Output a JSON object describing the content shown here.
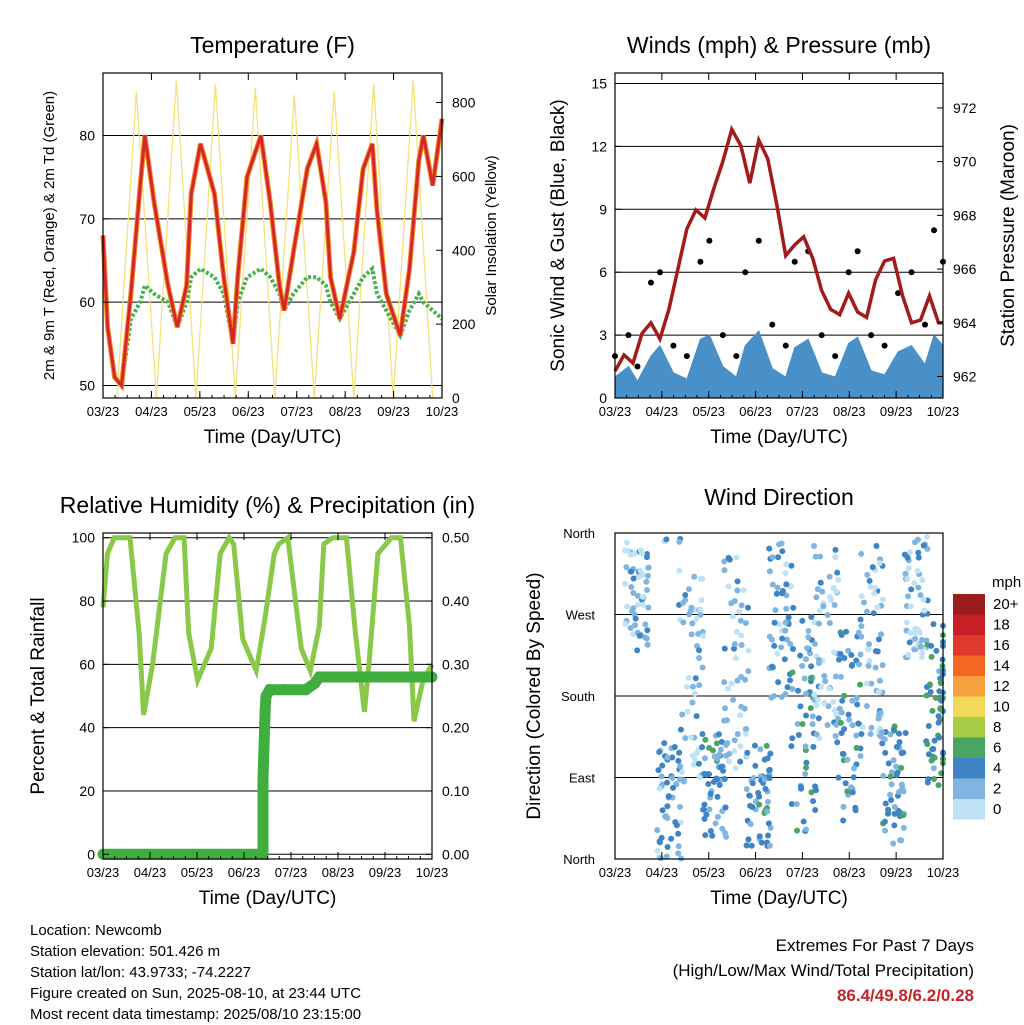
{
  "panels": {
    "temperature": {
      "title": "Temperature (F)",
      "ylabel": "2m & 9m T (Red, Orange) & 2m Td (Green)",
      "y2label": "Solar Insolation (Yellow)",
      "xlabel": "Time (Day/UTC)"
    },
    "winds": {
      "title": "Winds (mph) & Pressure (mb)",
      "ylabel": "Sonic Wind & Gust (Blue, Black)",
      "y2label": "Station Pressure (Maroon)",
      "xlabel": "Time (Day/UTC)"
    },
    "humidity": {
      "title": "Relative Humidity (%) & Precipitation (in)",
      "ylabel": "Percent & Total Rainfall",
      "xlabel": "Time (Day/UTC)"
    },
    "direction": {
      "title": "Wind Direction",
      "ylabel": "Direction (Colored By Speed)",
      "xlabel": "Time (Day/UTC)",
      "legend_title": "mph"
    }
  },
  "info": {
    "location": "Location: Newcomb",
    "elevation": "Station elevation: 501.426 m",
    "latlon": "Station lat/lon: 43.9733; -74.2227",
    "created": "Figure created on Sun, 2025-08-10, at 23:44 UTC",
    "recent": "Most recent data timestamp: 2025/08/10 23:15:00"
  },
  "extremes": {
    "heading": "Extremes For Past 7 Days",
    "subheading": "(High/Low/Max Wind/Total Precipitation)",
    "values": "86.4/49.8/6.2/0.28"
  },
  "colors": {
    "temp_2m": "#d62728",
    "temp_9m": "#f28c28",
    "dewpoint": "#4caf50",
    "solar": "#f5e17a",
    "wind": "#4a90c8",
    "gust": "#000000",
    "pressure": "#a31b1b",
    "rh": "#8ac84a",
    "precip": "#3fae3f"
  },
  "chart_data": [
    {
      "type": "line",
      "id": "temperature",
      "title": "Temperature (F)",
      "xlabel": "Time (Day/UTC)",
      "ylabel": "2m & 9m T (Red, Orange) & 2m Td (Green)",
      "y2label": "Solar Insolation (Yellow)",
      "x_ticks": [
        "03/23",
        "04/23",
        "05/23",
        "06/23",
        "07/23",
        "08/23",
        "09/23",
        "10/23"
      ],
      "x_range": [
        0,
        7.3
      ],
      "ylim": [
        48.5,
        87.5
      ],
      "y_ticks": [
        50,
        60,
        70,
        80
      ],
      "y2lim": [
        0,
        880
      ],
      "y2_ticks": [
        0,
        200,
        400,
        600,
        800
      ],
      "grid": true,
      "series": [
        {
          "name": "2m T",
          "color": "#d62728",
          "x": [
            0,
            0.1,
            0.25,
            0.4,
            0.6,
            0.8,
            0.9,
            1.1,
            1.4,
            1.6,
            1.8,
            1.9,
            2.1,
            2.4,
            2.6,
            2.8,
            2.9,
            3.1,
            3.4,
            3.6,
            3.8,
            3.9,
            4.1,
            4.4,
            4.6,
            4.8,
            4.9,
            5.1,
            5.4,
            5.6,
            5.8,
            5.9,
            6.1,
            6.4,
            6.6,
            6.8,
            6.9,
            7.1,
            7.3
          ],
          "y": [
            68,
            57,
            51,
            50,
            61,
            74,
            80,
            72,
            62,
            57,
            62,
            73,
            79,
            73,
            63,
            55,
            63,
            75,
            80,
            72,
            62,
            59,
            66,
            76,
            79,
            72,
            63,
            58,
            66,
            76,
            79,
            71,
            61,
            56,
            64,
            77,
            80,
            74,
            82
          ]
        },
        {
          "name": "2m Td",
          "color": "#4caf50",
          "x": [
            0,
            0.1,
            0.25,
            0.4,
            0.6,
            0.8,
            0.9,
            1.1,
            1.4,
            1.6,
            1.8,
            1.9,
            2.1,
            2.4,
            2.6,
            2.8,
            2.9,
            3.1,
            3.4,
            3.6,
            3.8,
            3.9,
            4.1,
            4.4,
            4.6,
            4.8,
            4.9,
            5.1,
            5.4,
            5.6,
            5.8,
            5.9,
            6.1,
            6.4,
            6.6,
            6.8,
            6.9,
            7.1,
            7.3
          ],
          "y": [
            67,
            57,
            51,
            50,
            58,
            60,
            62,
            61,
            60,
            57,
            60,
            63,
            64,
            63,
            61,
            55,
            60,
            63,
            64,
            63,
            61,
            59,
            61,
            63,
            63,
            62,
            60,
            58,
            61,
            63,
            64,
            61,
            59,
            56,
            59,
            61,
            60,
            59,
            58
          ]
        },
        {
          "name": "Solar Insolation",
          "color": "#f5e17a",
          "axis": "y2",
          "x": [
            0.3,
            0.72,
            1.15,
            1.58,
            2.0,
            2.42,
            2.85,
            3.28,
            3.7,
            4.12,
            4.55,
            4.98,
            5.4,
            5.83,
            6.25,
            6.68,
            7.1
          ],
          "y": [
            0,
            830,
            0,
            860,
            0,
            850,
            0,
            840,
            0,
            820,
            0,
            830,
            0,
            850,
            0,
            860,
            0
          ]
        }
      ]
    },
    {
      "type": "line",
      "id": "winds",
      "title": "Winds (mph) & Pressure (mb)",
      "xlabel": "Time (Day/UTC)",
      "ylabel": "Sonic Wind & Gust (Blue, Black)",
      "y2label": "Station Pressure (Maroon)",
      "x_ticks": [
        "03/23",
        "04/23",
        "05/23",
        "06/23",
        "07/23",
        "08/23",
        "09/23",
        "10/23"
      ],
      "x_range": [
        0,
        7.3
      ],
      "ylim": [
        0,
        15.5
      ],
      "y_ticks": [
        0,
        3,
        6,
        9,
        12,
        15
      ],
      "y2lim": [
        961.2,
        973.3
      ],
      "y2_ticks": [
        962,
        964,
        966,
        968,
        970,
        972
      ],
      "grid": true,
      "series": [
        {
          "name": "Sonic Wind",
          "color": "#4a90c8",
          "x": [
            0,
            0.3,
            0.5,
            0.8,
            1.0,
            1.3,
            1.6,
            1.9,
            2.1,
            2.4,
            2.7,
            2.9,
            3.2,
            3.5,
            3.8,
            4.0,
            4.3,
            4.6,
            4.9,
            5.2,
            5.4,
            5.7,
            6.0,
            6.3,
            6.6,
            6.9,
            7.1,
            7.3
          ],
          "y": [
            1.0,
            1.5,
            0.8,
            2.0,
            2.5,
            1.2,
            0.9,
            2.8,
            3.0,
            1.5,
            1.0,
            2.5,
            3.2,
            1.4,
            1.0,
            2.4,
            2.8,
            1.2,
            1.0,
            2.6,
            2.9,
            1.3,
            1.1,
            2.2,
            2.5,
            1.6,
            3.0,
            2.5
          ]
        },
        {
          "name": "Gust",
          "color": "#000000",
          "x": [
            0,
            0.3,
            0.5,
            0.8,
            1.0,
            1.3,
            1.6,
            1.9,
            2.1,
            2.4,
            2.7,
            2.9,
            3.2,
            3.5,
            3.8,
            4.0,
            4.3,
            4.6,
            4.9,
            5.2,
            5.4,
            5.7,
            6.0,
            6.3,
            6.6,
            6.9,
            7.1,
            7.3
          ],
          "y": [
            2.0,
            3.0,
            1.5,
            5.5,
            6.0,
            2.5,
            2.0,
            6.5,
            7.5,
            3.0,
            2.0,
            6.0,
            7.5,
            3.5,
            2.5,
            6.5,
            7.0,
            3.0,
            2.0,
            6.0,
            7.0,
            3.0,
            2.5,
            5.0,
            6.0,
            3.5,
            8.0,
            6.5
          ]
        },
        {
          "name": "Station Pressure",
          "color": "#a31b1b",
          "axis": "y2",
          "x": [
            0,
            0.2,
            0.4,
            0.6,
            0.8,
            1.0,
            1.2,
            1.4,
            1.6,
            1.8,
            2.0,
            2.2,
            2.4,
            2.6,
            2.8,
            3.0,
            3.2,
            3.4,
            3.6,
            3.8,
            4.0,
            4.2,
            4.4,
            4.6,
            4.8,
            5.0,
            5.2,
            5.4,
            5.6,
            5.8,
            6.0,
            6.2,
            6.4,
            6.6,
            6.8,
            7.0,
            7.2,
            7.3
          ],
          "y": [
            962.2,
            962.8,
            962.5,
            963.6,
            964.0,
            963.4,
            964.5,
            966.0,
            967.5,
            968.2,
            967.9,
            969.0,
            970.0,
            971.2,
            970.6,
            969.2,
            970.8,
            970.1,
            968.4,
            966.5,
            966.9,
            967.2,
            966.4,
            965.2,
            964.5,
            964.3,
            965.1,
            964.4,
            964.2,
            965.6,
            966.3,
            966.4,
            965.0,
            964.0,
            964.1,
            965.0,
            964.0,
            964.0
          ]
        }
      ]
    },
    {
      "type": "line",
      "id": "humidity",
      "title": "Relative Humidity (%) & Precipitation (in)",
      "xlabel": "Time (Day/UTC)",
      "ylabel": "Percent & Total Rainfall",
      "x_ticks": [
        "03/23",
        "04/23",
        "05/23",
        "06/23",
        "07/23",
        "08/23",
        "09/23",
        "10/23"
      ],
      "x_range": [
        0,
        7.3
      ],
      "ylim": [
        -1.5,
        101.5
      ],
      "y_ticks": [
        0,
        20,
        40,
        60,
        80,
        100
      ],
      "y2lim": [
        -0.0075,
        0.5075
      ],
      "y2_ticks": [
        "0.00",
        "0.10",
        "0.20",
        "0.30",
        "0.40",
        "0.50"
      ],
      "grid": true,
      "series": [
        {
          "name": "RH",
          "color": "#8ac84a",
          "x": [
            0,
            0.1,
            0.25,
            0.4,
            0.6,
            0.8,
            0.9,
            1.1,
            1.4,
            1.6,
            1.8,
            1.9,
            2.1,
            2.4,
            2.6,
            2.8,
            2.9,
            3.1,
            3.4,
            3.6,
            3.8,
            3.9,
            4.1,
            4.4,
            4.6,
            4.8,
            4.9,
            5.1,
            5.4,
            5.6,
            5.8,
            5.9,
            6.1,
            6.4,
            6.6,
            6.8,
            6.9,
            7.1,
            7.3
          ],
          "y": [
            78,
            95,
            100,
            100,
            100,
            70,
            44,
            60,
            95,
            100,
            100,
            70,
            55,
            65,
            95,
            100,
            98,
            68,
            58,
            75,
            95,
            98,
            100,
            65,
            58,
            72,
            98,
            100,
            100,
            70,
            45,
            60,
            95,
            100,
            100,
            72,
            42,
            55,
            60
          ]
        },
        {
          "name": "Total Precipitation",
          "color": "#3fae3f",
          "axis": "y2",
          "x": [
            0,
            1.0,
            2.0,
            3.0,
            3.55,
            3.55,
            3.6,
            3.62,
            3.7,
            4.0,
            4.5,
            4.7,
            4.8,
            5.0,
            6.0,
            7.0,
            7.3
          ],
          "y": [
            0,
            0,
            0,
            0,
            0,
            0.12,
            0.23,
            0.25,
            0.26,
            0.26,
            0.26,
            0.27,
            0.28,
            0.28,
            0.28,
            0.28,
            0.28
          ]
        }
      ]
    },
    {
      "type": "scatter",
      "id": "direction",
      "title": "Wind Direction",
      "xlabel": "Time (Day/UTC)",
      "ylabel": "Direction (Colored By Speed)",
      "x_ticks": [
        "03/23",
        "04/23",
        "05/23",
        "06/23",
        "07/23",
        "08/23",
        "09/23",
        "10/23"
      ],
      "x_range": [
        0,
        7.3
      ],
      "y_ticks": [
        "North",
        "East",
        "South",
        "West",
        "North"
      ],
      "ylim": [
        0,
        360
      ],
      "grid": true,
      "legend": {
        "title": "mph",
        "labels": [
          "20+",
          "18",
          "16",
          "14",
          "12",
          "10",
          "8",
          "6",
          "4",
          "2",
          "0"
        ],
        "colors": [
          "#9b1c1c",
          "#c62026",
          "#e0392b",
          "#f26722",
          "#f9a13e",
          "#f3d95a",
          "#a8cc46",
          "#4aa562",
          "#3f84c4",
          "#7fb5e0",
          "#bfe3f5"
        ],
        "placement": "right"
      },
      "clusters": [
        {
          "x": 0.5,
          "dir_center": 290,
          "dir_spread": 60,
          "speed": 2
        },
        {
          "x": 1.2,
          "dir_center": 60,
          "dir_spread": 70,
          "speed": 3
        },
        {
          "x": 1.7,
          "dir_center": 200,
          "dir_spread": 120,
          "speed": 2
        },
        {
          "x": 2.2,
          "dir_center": 80,
          "dir_spread": 60,
          "speed": 4
        },
        {
          "x": 2.7,
          "dir_center": 220,
          "dir_spread": 120,
          "speed": 2
        },
        {
          "x": 3.2,
          "dir_center": 70,
          "dir_spread": 60,
          "speed": 4
        },
        {
          "x": 3.7,
          "dir_center": 260,
          "dir_spread": 90,
          "speed": 3
        },
        {
          "x": 4.2,
          "dir_center": 150,
          "dir_spread": 120,
          "speed": 4
        },
        {
          "x": 4.7,
          "dir_center": 240,
          "dir_spread": 110,
          "speed": 2
        },
        {
          "x": 5.2,
          "dir_center": 150,
          "dir_spread": 110,
          "speed": 4
        },
        {
          "x": 5.7,
          "dir_center": 240,
          "dir_spread": 110,
          "speed": 2
        },
        {
          "x": 6.2,
          "dir_center": 80,
          "dir_spread": 70,
          "speed": 4
        },
        {
          "x": 6.7,
          "dir_center": 290,
          "dir_spread": 70,
          "speed": 2
        },
        {
          "x": 7.2,
          "dir_center": 170,
          "dir_spread": 90,
          "speed": 5
        }
      ]
    }
  ]
}
